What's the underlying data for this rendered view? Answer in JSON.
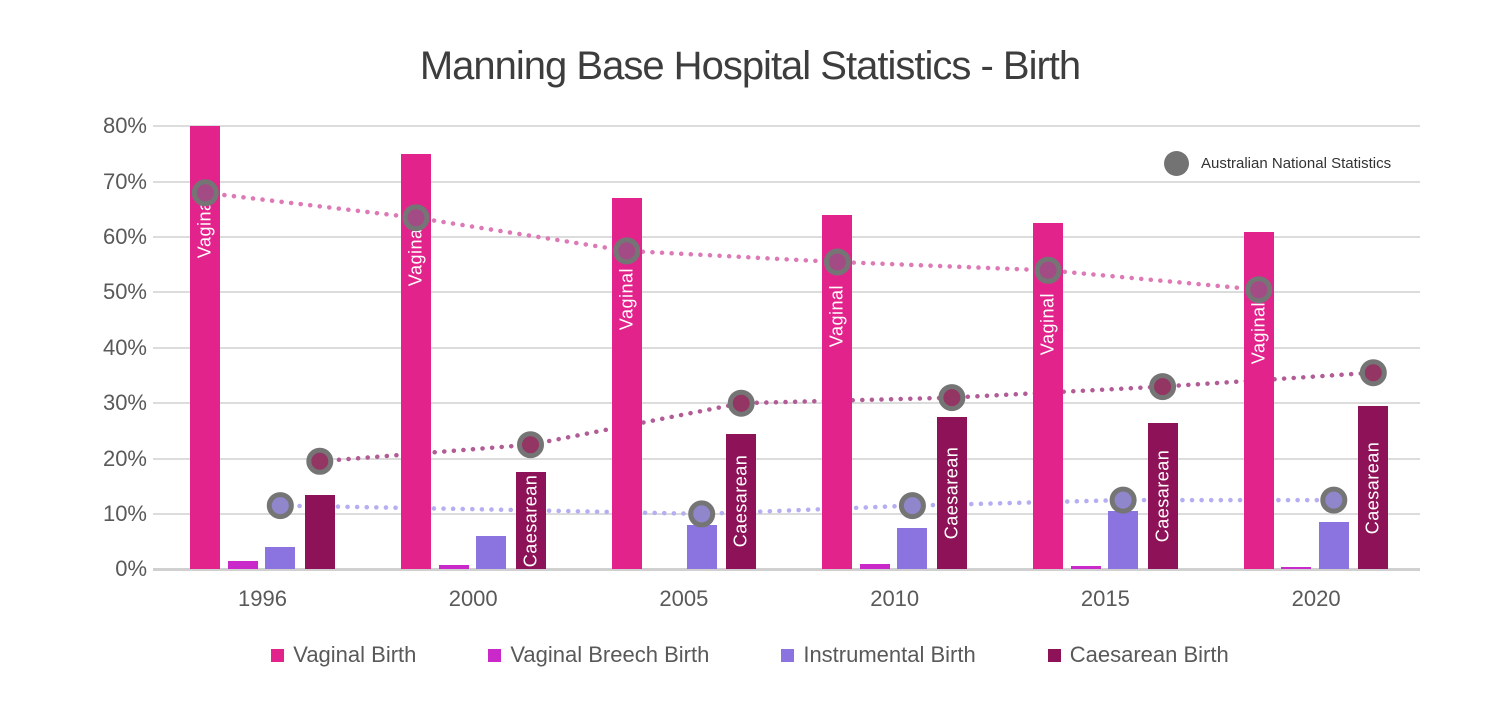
{
  "title": "Manning Base Hospital Statistics - Birth",
  "inplot_legend": {
    "label": "Australian National Statistics",
    "marker_color": "#737373"
  },
  "legend": [
    {
      "label": "Vaginal Birth",
      "color": "#e2238c"
    },
    {
      "label": "Vaginal Breech Birth",
      "color": "#c929c9"
    },
    {
      "label": "Instrumental Birth",
      "color": "#8b74e0"
    },
    {
      "label": "Caesarean Birth",
      "color": "#8e1257"
    }
  ],
  "chart_data": {
    "type": "bar",
    "title": "Manning Base Hospital Statistics - Birth",
    "categories": [
      "1996",
      "2000",
      "2005",
      "2010",
      "2015",
      "2020"
    ],
    "y_ticks": [
      "80%",
      "70%",
      "60%",
      "50%",
      "40%",
      "30%",
      "20%",
      "10%",
      "0%"
    ],
    "ylim": [
      0,
      80
    ],
    "grid": true,
    "legend_position": "bottom",
    "bar_series": [
      {
        "name": "Vaginal Birth",
        "color": "#e2238c",
        "bar_label": "Vaginal",
        "label_on": [
          true,
          true,
          true,
          true,
          true,
          true
        ],
        "values": [
          80,
          75,
          67,
          64,
          62.5,
          61
        ]
      },
      {
        "name": "Vaginal Breech Birth",
        "color": "#c929c9",
        "values": [
          1.5,
          0.7,
          0,
          1,
          0.6,
          0.5
        ]
      },
      {
        "name": "Instrumental Birth",
        "color": "#8b74e0",
        "values": [
          4,
          6,
          8,
          7.5,
          10.5,
          8.5
        ]
      },
      {
        "name": "Caesarean Birth",
        "color": "#8e1257",
        "bar_label": "Caesarean",
        "label_on": [
          false,
          true,
          true,
          true,
          true,
          true
        ],
        "values": [
          13.5,
          17.5,
          24.5,
          27.5,
          26.5,
          29.5
        ]
      }
    ],
    "line_series": [
      {
        "name": "Australian National Statistics - Vaginal",
        "style": "dotted",
        "color": "#dd7ab5",
        "marker_fill": "#a34b84",
        "align_with": 0,
        "values": [
          68,
          63.5,
          57.5,
          55.5,
          54,
          50.5
        ],
        "markers": [
          1,
          1,
          1,
          1,
          1,
          1
        ]
      },
      {
        "name": "Australian National Statistics - Caesarean",
        "style": "dotted",
        "color": "#b25c96",
        "marker_fill": "#933663",
        "align_with": 3,
        "values": [
          19.5,
          22.5,
          30,
          31,
          33,
          35.5
        ],
        "markers": [
          1,
          1,
          1,
          1,
          1,
          1
        ]
      },
      {
        "name": "Australian National Statistics - Instrumental",
        "style": "dotted",
        "color": "#b4aef2",
        "marker_fill": "#8f86cc",
        "align_with": 2,
        "values": [
          11.5,
          10.8,
          10,
          11.5,
          12.5,
          12.5
        ],
        "markers": [
          1,
          0,
          1,
          1,
          1,
          1
        ]
      }
    ]
  }
}
